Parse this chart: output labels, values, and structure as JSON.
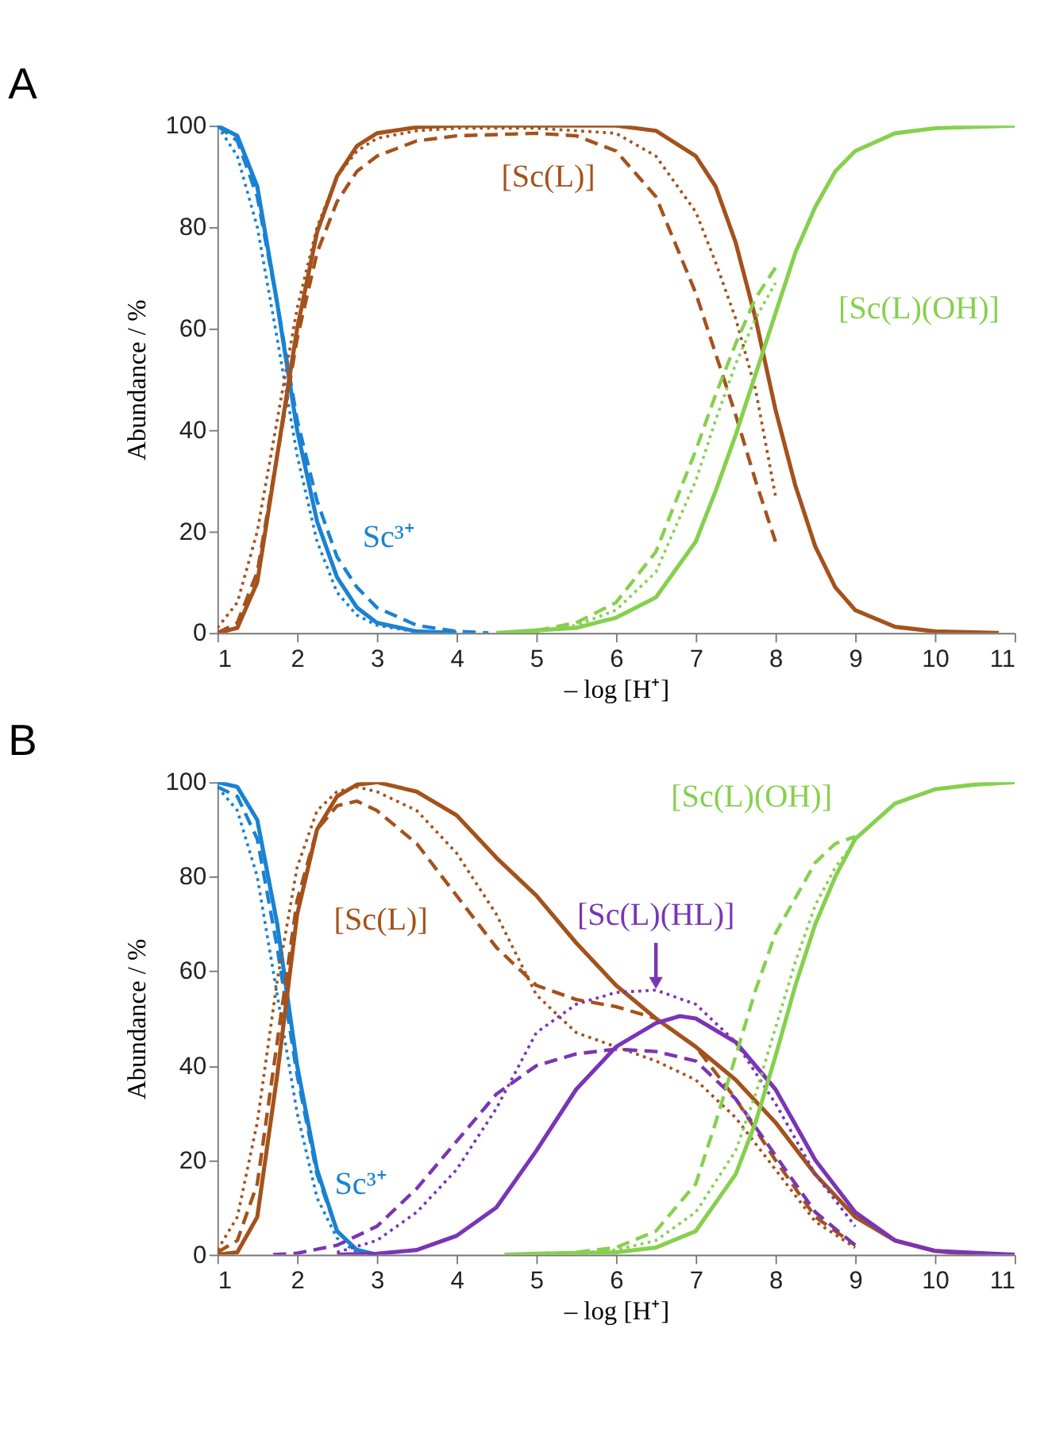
{
  "chart_data": [
    {
      "type": "line",
      "title": "A",
      "xlabel": "– log [H⁺]",
      "ylabel": "Abundance / %",
      "xlim": [
        1,
        11
      ],
      "ylim": [
        0,
        100
      ],
      "xticks": [
        1,
        2,
        3,
        4,
        5,
        6,
        7,
        8,
        9,
        10,
        11
      ],
      "yticks": [
        0,
        20,
        40,
        60,
        80,
        100
      ],
      "grid": false,
      "legend": false,
      "marker": "none",
      "series": [
        {
          "name": "Sc³⁺",
          "color": "#1a82d2",
          "line_style": "solid",
          "x": [
            1,
            1.25,
            1.5,
            1.75,
            2,
            2.25,
            2.5,
            2.75,
            3,
            3.5,
            4
          ],
          "values": [
            100,
            98,
            88,
            65,
            40,
            22,
            11,
            5,
            2,
            0.3,
            0
          ]
        },
        {
          "color": "#1a82d2",
          "line_style": "dashed",
          "x": [
            1,
            1.25,
            1.5,
            1.75,
            2,
            2.25,
            2.5,
            2.75,
            3,
            3.5,
            4,
            4.4
          ],
          "values": [
            100,
            97,
            86,
            65,
            42,
            26,
            15,
            9,
            5,
            1.5,
            0.3,
            0
          ]
        },
        {
          "color": "#1a82d2",
          "line_style": "dotted",
          "x": [
            1,
            1.25,
            1.5,
            1.75,
            2,
            2.25,
            2.5,
            2.75,
            3,
            3.5,
            4
          ],
          "values": [
            100,
            94,
            80,
            58,
            35,
            18,
            8,
            3.5,
            1.5,
            0.2,
            0
          ]
        },
        {
          "name": "[Sc(L)]",
          "color": "#a4521c",
          "line_style": "solid",
          "x": [
            1,
            1.25,
            1.5,
            1.75,
            2,
            2.25,
            2.5,
            2.75,
            3,
            3.5,
            4,
            5,
            6,
            6.5,
            7,
            7.25,
            7.5,
            7.75,
            8,
            8.25,
            8.5,
            8.75,
            9,
            9.5,
            10,
            10.8
          ],
          "values": [
            0,
            1,
            10,
            35,
            60,
            79,
            90,
            96,
            98.5,
            99.7,
            100,
            100,
            100,
            99,
            94,
            88,
            77,
            62,
            44,
            29,
            17,
            9,
            4.5,
            1.2,
            0.3,
            0
          ]
        },
        {
          "color": "#a4521c",
          "line_style": "dashed",
          "x": [
            1,
            1.25,
            1.5,
            1.75,
            2,
            2.25,
            2.5,
            2.75,
            3,
            3.5,
            4,
            5,
            5.5,
            6,
            6.5,
            7,
            7.25,
            7.5,
            7.75,
            8
          ],
          "values": [
            0,
            2,
            12,
            35,
            58,
            75,
            85,
            91,
            94,
            97,
            98,
            98.5,
            98,
            95,
            86,
            67,
            55,
            43,
            30,
            18
          ]
        },
        {
          "color": "#a4521c",
          "line_style": "dotted",
          "x": [
            1,
            1.25,
            1.5,
            1.75,
            2,
            2.25,
            2.5,
            2.75,
            3,
            3.5,
            4,
            5,
            6,
            6.5,
            7,
            7.25,
            7.5,
            7.75,
            8
          ],
          "values": [
            1,
            6,
            20,
            42,
            64,
            80,
            90,
            95,
            97.5,
            99,
            99.5,
            99.5,
            98.5,
            94,
            83,
            73,
            62,
            48,
            27
          ]
        },
        {
          "name": "[Sc(L)(OH)]",
          "color": "#86d04e",
          "line_style": "solid",
          "x": [
            4.5,
            5,
            5.5,
            6,
            6.5,
            7,
            7.25,
            7.5,
            7.75,
            8,
            8.25,
            8.5,
            8.75,
            9,
            9.5,
            10,
            11
          ],
          "values": [
            0,
            0.5,
            1,
            3,
            7,
            18,
            28,
            39,
            51,
            63,
            75,
            84,
            91,
            95,
            98.5,
            99.5,
            100
          ]
        },
        {
          "color": "#86d04e",
          "line_style": "dashed",
          "x": [
            5,
            5.5,
            6,
            6.5,
            7,
            7.25,
            7.5,
            7.75,
            8
          ],
          "values": [
            0.5,
            2,
            6,
            16,
            36,
            47,
            57,
            66,
            72
          ]
        },
        {
          "color": "#86d04e",
          "line_style": "dotted",
          "x": [
            5,
            5.5,
            6,
            6.5,
            7,
            7.25,
            7.5,
            7.75,
            8
          ],
          "values": [
            0.3,
            1.5,
            4.5,
            12,
            30,
            42,
            53,
            62,
            69
          ]
        }
      ]
    },
    {
      "type": "line",
      "title": "B",
      "xlabel": "– log [H⁺]",
      "ylabel": "Abundance / %",
      "xlim": [
        1,
        11
      ],
      "ylim": [
        0,
        100
      ],
      "xticks": [
        1,
        2,
        3,
        4,
        5,
        6,
        7,
        8,
        9,
        10,
        11
      ],
      "yticks": [
        0,
        20,
        40,
        60,
        80,
        100
      ],
      "grid": false,
      "legend": false,
      "marker": "none",
      "series": [
        {
          "name": "Sc³⁺",
          "color": "#1a82d2",
          "line_style": "solid",
          "x": [
            1,
            1.25,
            1.5,
            1.75,
            2,
            2.25,
            2.5,
            2.75,
            3
          ],
          "values": [
            100,
            99,
            92,
            70,
            40,
            18,
            5,
            1,
            0
          ]
        },
        {
          "color": "#1a82d2",
          "line_style": "dashed",
          "x": [
            1,
            1.25,
            1.5,
            1.75,
            2,
            2.25,
            2.5,
            2.75,
            3
          ],
          "values": [
            99,
            97,
            88,
            65,
            38,
            17,
            5,
            1,
            0
          ]
        },
        {
          "color": "#1a82d2",
          "line_style": "dotted",
          "x": [
            1,
            1.25,
            1.5,
            1.75,
            2,
            2.25,
            2.5,
            2.75,
            3
          ],
          "values": [
            99,
            94,
            80,
            55,
            30,
            12,
            3.5,
            0.5,
            0
          ]
        },
        {
          "name": "[Sc(L)]",
          "color": "#a4521c",
          "line_style": "solid",
          "x": [
            1,
            1.25,
            1.5,
            1.75,
            2,
            2.25,
            2.5,
            2.75,
            3,
            3.5,
            4,
            4.5,
            5,
            5.5,
            6,
            6.5,
            7,
            7.5,
            8,
            8.5,
            9,
            9.5,
            10,
            10.5
          ],
          "values": [
            0,
            0.5,
            8,
            38,
            72,
            90,
            97,
            99.5,
            100,
            98,
            93,
            84,
            76,
            66,
            57,
            50,
            44,
            37,
            28,
            17,
            8,
            3,
            0.8,
            0
          ]
        },
        {
          "color": "#a4521c",
          "line_style": "dashed",
          "x": [
            1,
            1.25,
            1.5,
            1.75,
            2,
            2.25,
            2.5,
            2.75,
            3,
            3.5,
            4,
            4.5,
            5,
            5.5,
            6,
            6.5,
            7,
            7.5,
            8,
            8.5,
            9
          ],
          "values": [
            0.5,
            3,
            15,
            45,
            75,
            90,
            95,
            96,
            94,
            87,
            76,
            65,
            57,
            54,
            52.5,
            50,
            44,
            33,
            20,
            8,
            2
          ]
        },
        {
          "color": "#a4521c",
          "line_style": "dotted",
          "x": [
            1,
            1.25,
            1.5,
            1.75,
            2,
            2.25,
            2.5,
            2.75,
            3,
            3.5,
            4,
            4.5,
            5,
            5.5,
            6,
            6.5,
            7,
            7.5,
            8,
            8.5,
            9
          ],
          "values": [
            1,
            8,
            28,
            58,
            82,
            94,
            98,
            99,
            98,
            94,
            85,
            72,
            55,
            47,
            44,
            41,
            37,
            29,
            18,
            7,
            1.5
          ]
        },
        {
          "name": "[Sc(L)(HL)]",
          "color": "#7a35b5",
          "line_style": "solid",
          "x": [
            2.5,
            3,
            3.5,
            4,
            4.5,
            5,
            5.5,
            6,
            6.5,
            6.8,
            7,
            7.5,
            8,
            8.5,
            9,
            9.5,
            10,
            11
          ],
          "values": [
            0,
            0.2,
            1,
            4,
            10,
            22,
            35,
            44,
            49,
            50.5,
            50,
            45,
            35,
            20,
            9,
            3,
            0.8,
            0
          ]
        },
        {
          "color": "#7a35b5",
          "line_style": "dashed",
          "x": [
            1.7,
            2,
            2.5,
            3,
            3.5,
            4,
            4.5,
            5,
            5.5,
            6,
            6.5,
            7,
            7.5,
            8,
            8.5,
            9
          ],
          "values": [
            0,
            0.3,
            2,
            6,
            14,
            24,
            34,
            40,
            42.5,
            43.5,
            43,
            41,
            33,
            21,
            9,
            2
          ]
        },
        {
          "color": "#7a35b5",
          "line_style": "dotted",
          "x": [
            2.5,
            3,
            3.5,
            4,
            4.5,
            5,
            5.5,
            6,
            6.5,
            7,
            7.5,
            8,
            8.5,
            9
          ],
          "values": [
            0.5,
            3,
            9,
            18,
            31,
            47,
            53,
            55.5,
            56,
            53,
            45,
            32,
            17,
            6
          ]
        },
        {
          "name": "[Sc(L)(OH)]",
          "color": "#86d04e",
          "line_style": "solid",
          "x": [
            4.6,
            5,
            6,
            6.5,
            7,
            7.5,
            7.75,
            8,
            8.25,
            8.5,
            8.75,
            9,
            9.5,
            10,
            10.5,
            11
          ],
          "values": [
            0,
            0.2,
            0.5,
            1.5,
            5,
            17,
            28,
            42,
            57,
            70,
            80,
            88,
            95.5,
            98.5,
            99.5,
            100
          ]
        },
        {
          "color": "#86d04e",
          "line_style": "dashed",
          "x": [
            5,
            5.5,
            6,
            6.5,
            7,
            7.25,
            7.5,
            7.75,
            8,
            8.5,
            8.75,
            9
          ],
          "values": [
            0.2,
            0.5,
            1.5,
            5,
            15,
            28,
            42,
            56,
            68,
            83,
            87,
            88.5
          ]
        },
        {
          "color": "#86d04e",
          "line_style": "dotted",
          "x": [
            5.5,
            6,
            6.5,
            7,
            7.5,
            7.75,
            8,
            8.25,
            8.5,
            8.75,
            9
          ],
          "values": [
            0.3,
            1,
            3,
            9,
            22,
            34,
            48,
            62,
            74,
            82,
            87.5
          ]
        }
      ]
    }
  ]
}
